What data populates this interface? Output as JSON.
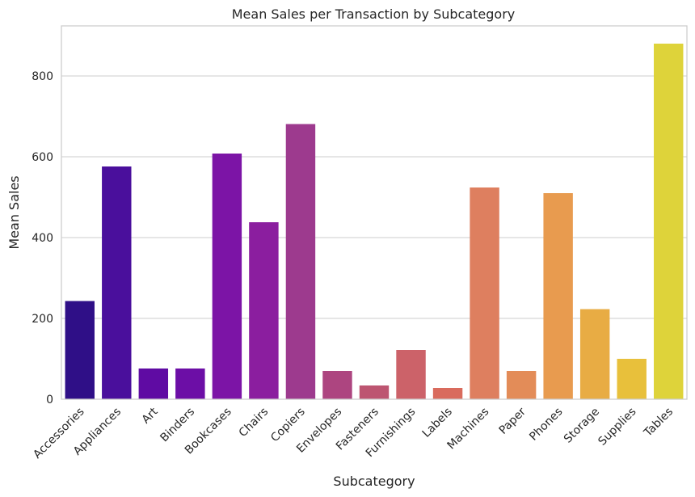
{
  "chart_data": {
    "type": "bar",
    "title": "Mean Sales per Transaction by Subcategory",
    "xlabel": "Subcategory",
    "ylabel": "Mean Sales",
    "categories": [
      "Accessories",
      "Appliances",
      "Art",
      "Binders",
      "Bookcases",
      "Chairs",
      "Copiers",
      "Envelopes",
      "Fasteners",
      "Furnishings",
      "Labels",
      "Machines",
      "Paper",
      "Phones",
      "Storage",
      "Supplies",
      "Tables"
    ],
    "values": [
      243,
      576,
      76,
      76,
      608,
      438,
      681,
      70,
      34,
      122,
      28,
      524,
      70,
      510,
      223,
      100,
      880
    ],
    "colors": [
      "#2f0f87",
      "#4a0f9c",
      "#5f0ba3",
      "#6c0ea6",
      "#7c14a6",
      "#8b1e9f",
      "#9d3a8e",
      "#ad4580",
      "#bd5571",
      "#cc6269",
      "#d96b5d",
      "#de7f5f",
      "#e38c58",
      "#e89b4f",
      "#e8ac44",
      "#e8c03b",
      "#ded33a"
    ],
    "yticks": [
      0,
      200,
      400,
      600,
      800
    ],
    "ylim": [
      0,
      924
    ],
    "grid": "horizontal",
    "x_tick_rotation": 45
  }
}
